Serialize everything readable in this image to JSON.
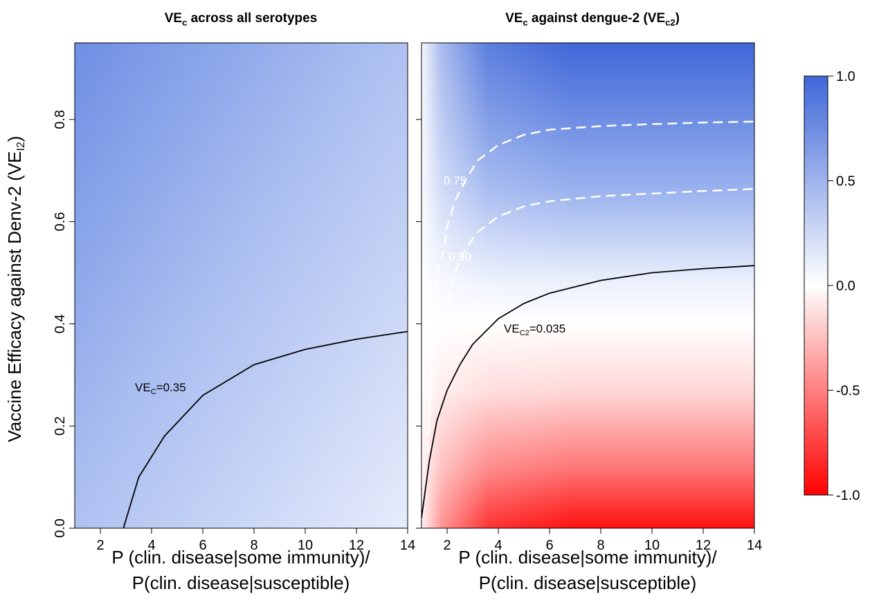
{
  "chart_data": [
    {
      "type": "heatmap",
      "title": "VEc across all serotypes",
      "xlabel_line1": "P (clin. disease|some immunity)/",
      "xlabel_line2": "P(clin. disease|susceptible)",
      "ylabel": "Vaccine Efficacy against  Denv-2  (VEI2)",
      "xlim": [
        1,
        14
      ],
      "ylim": [
        0,
        0.95
      ],
      "x_ticks": [
        "2",
        "4",
        "6",
        "8",
        "10",
        "12",
        "14"
      ],
      "y_ticks": [
        "0.0",
        "0.2",
        "0.4",
        "0.6",
        "0.8"
      ],
      "contours": [
        {
          "label": "VEC=0.35",
          "style": "solid",
          "color": "#000000",
          "x": [
            2.9,
            3.5,
            4.5,
            6,
            8,
            10,
            12,
            14
          ],
          "y": [
            0.0,
            0.1,
            0.18,
            0.26,
            0.32,
            0.35,
            0.37,
            0.385
          ]
        }
      ]
    },
    {
      "type": "heatmap",
      "title": "VEc against dengue-2 (VEc2)",
      "xlabel_line1": "P (clin. disease|some immunity)/",
      "xlabel_line2": "P(clin. disease|susceptible)",
      "xlim": [
        1,
        14
      ],
      "ylim": [
        0,
        0.95
      ],
      "x_ticks": [
        "2",
        "4",
        "6",
        "8",
        "10",
        "12",
        "14"
      ],
      "contours": [
        {
          "label": "VEC2=0.035",
          "style": "solid",
          "color": "#000000",
          "x": [
            1.0,
            1.3,
            1.6,
            2.0,
            2.5,
            3,
            4,
            5,
            6,
            8,
            10,
            12,
            14
          ],
          "y": [
            0.02,
            0.13,
            0.21,
            0.27,
            0.32,
            0.36,
            0.41,
            0.44,
            0.46,
            0.485,
            0.5,
            0.508,
            0.514
          ]
        },
        {
          "label": "0.50",
          "style": "dashed",
          "color": "#ffffff",
          "x": [
            1.25,
            1.35,
            1.5,
            1.65,
            1.85,
            2.0,
            2.3,
            2.7,
            3.2,
            4,
            5,
            6,
            8,
            10,
            12,
            14
          ],
          "y": [
            0.15,
            0.28,
            0.35,
            0.38,
            0.4,
            0.44,
            0.5,
            0.545,
            0.58,
            0.61,
            0.63,
            0.64,
            0.65,
            0.655,
            0.66,
            0.664
          ]
        },
        {
          "label": "0.75",
          "style": "dashed",
          "color": "#ffffff",
          "x": [
            1.3,
            1.45,
            1.6,
            1.85,
            2.0,
            2.3,
            2.7,
            3.2,
            4,
            5,
            6,
            8,
            10,
            12,
            14
          ],
          "y": [
            0.2,
            0.39,
            0.5,
            0.54,
            0.59,
            0.64,
            0.68,
            0.72,
            0.75,
            0.77,
            0.78,
            0.787,
            0.791,
            0.794,
            0.796
          ]
        }
      ]
    }
  ],
  "colorbar": {
    "range": [
      -1.0,
      1.0
    ],
    "ticks": [
      "1.0",
      "0.5",
      "0.0",
      "-0.5",
      "-1.0"
    ],
    "colors": {
      "high": "#3f67d8",
      "mid": "#ffffff",
      "low": "#ff0000"
    }
  }
}
